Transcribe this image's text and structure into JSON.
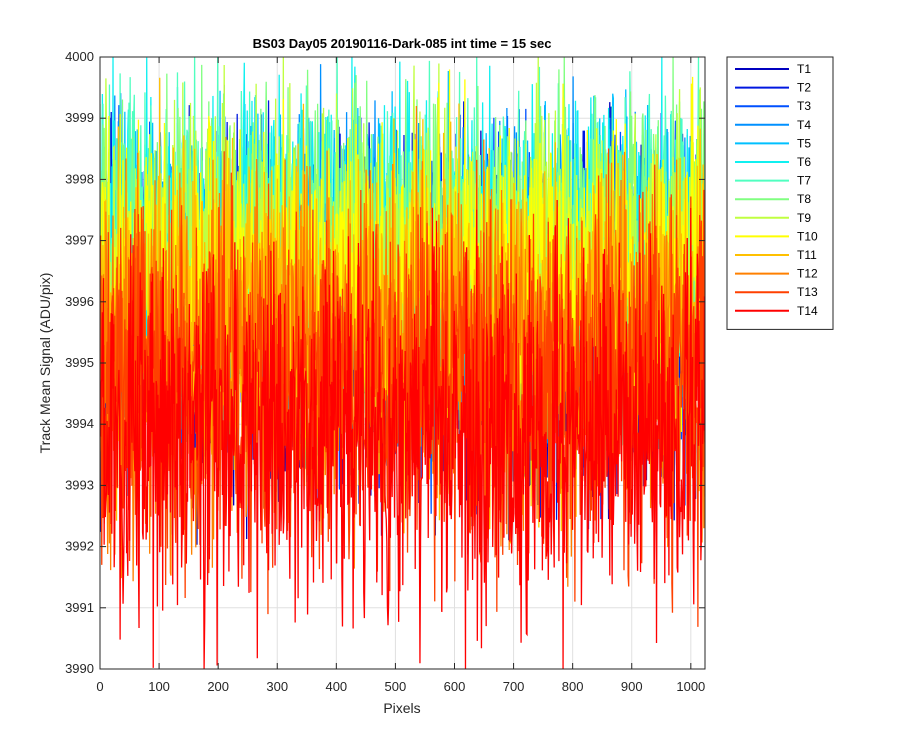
{
  "chart_data": {
    "type": "line",
    "title": "BS03 Day05 20190116-Dark-085 int time = 15 sec",
    "xlabel": "Pixels",
    "ylabel": "Track Mean Signal (ADU/pix)",
    "xlim": [
      0,
      1024
    ],
    "ylim": [
      3990,
      4000
    ],
    "xticks": [
      0,
      100,
      200,
      300,
      400,
      500,
      600,
      700,
      800,
      900,
      1000
    ],
    "yticks": [
      3990,
      3991,
      3992,
      3993,
      3994,
      3995,
      3996,
      3997,
      3998,
      3999,
      4000
    ],
    "grid": true,
    "legend_position": "outside-top-right",
    "n_points": 1024,
    "series": [
      {
        "name": "T1",
        "color": "#0000bf",
        "mean": 3995.6,
        "amplitude": 1.4
      },
      {
        "name": "T2",
        "color": "#0018e0",
        "mean": 3995.8,
        "amplitude": 1.4
      },
      {
        "name": "T3",
        "color": "#0050ff",
        "mean": 3996.0,
        "amplitude": 1.3
      },
      {
        "name": "T4",
        "color": "#0090ff",
        "mean": 3996.3,
        "amplitude": 1.3
      },
      {
        "name": "T5",
        "color": "#00c0ff",
        "mean": 3996.6,
        "amplitude": 1.2
      },
      {
        "name": "T6",
        "color": "#10f0f0",
        "mean": 3996.8,
        "amplitude": 1.2
      },
      {
        "name": "T7",
        "color": "#50ffc0",
        "mean": 3996.9,
        "amplitude": 1.2
      },
      {
        "name": "T8",
        "color": "#80ff80",
        "mean": 3996.9,
        "amplitude": 1.2
      },
      {
        "name": "T9",
        "color": "#c0ff40",
        "mean": 3996.7,
        "amplitude": 1.2
      },
      {
        "name": "T10",
        "color": "#ffff00",
        "mean": 3996.3,
        "amplitude": 1.3
      },
      {
        "name": "T11",
        "color": "#ffc000",
        "mean": 3995.6,
        "amplitude": 1.4
      },
      {
        "name": "T12",
        "color": "#ff8000",
        "mean": 3995.0,
        "amplitude": 1.5
      },
      {
        "name": "T13",
        "color": "#ff4000",
        "mean": 3994.6,
        "amplitude": 1.5
      },
      {
        "name": "T14",
        "color": "#ff0000",
        "mean": 3993.8,
        "amplitude": 1.5
      }
    ]
  }
}
